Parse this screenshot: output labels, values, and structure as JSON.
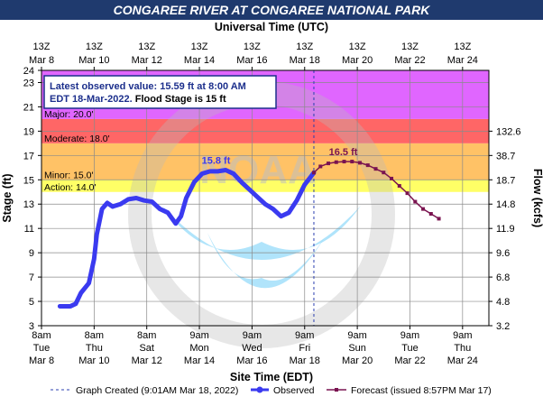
{
  "chart_data": {
    "type": "line",
    "title": "CONGAREE RIVER AT CONGAREE NATIONAL PARK",
    "top_axis_title": "Universal Time (UTC)",
    "bottom_axis_title": "Site Time (EDT)",
    "ylabel": "Stage (ft)",
    "y2label": "Flow (kcfs)",
    "ylim": [
      3,
      24
    ],
    "y_ticks": [
      3,
      5,
      7,
      9,
      11,
      13,
      15,
      17,
      19,
      21,
      23,
      24
    ],
    "y2_ticks": [
      {
        "stage": 5,
        "label": "4.8"
      },
      {
        "stage": 7,
        "label": "6.8"
      },
      {
        "stage": 9,
        "label": "9.6"
      },
      {
        "stage": 11,
        "label": "11.9"
      },
      {
        "stage": 13,
        "label": "14.8"
      },
      {
        "stage": 15,
        "label": "18.7"
      },
      {
        "stage": 17,
        "label": "38.7"
      },
      {
        "stage": 19,
        "label": "132.6"
      },
      {
        "stage": 3,
        "label": "3.2"
      }
    ],
    "xlim_days": [
      8.0,
      25.0
    ],
    "top_ticks": [
      {
        "day": 8.0,
        "l1": "13Z",
        "l2": "Mar  8"
      },
      {
        "day": 10.0,
        "l1": "13Z",
        "l2": "Mar 10"
      },
      {
        "day": 12.0,
        "l1": "13Z",
        "l2": "Mar 12"
      },
      {
        "day": 14.0,
        "l1": "13Z",
        "l2": "Mar 14"
      },
      {
        "day": 16.0,
        "l1": "13Z",
        "l2": "Mar 16"
      },
      {
        "day": 18.0,
        "l1": "13Z",
        "l2": "Mar 18"
      },
      {
        "day": 20.0,
        "l1": "13Z",
        "l2": "Mar 20"
      },
      {
        "day": 22.0,
        "l1": "13Z",
        "l2": "Mar 22"
      },
      {
        "day": 24.0,
        "l1": "13Z",
        "l2": "Mar 24"
      }
    ],
    "bottom_ticks": [
      {
        "day": 8.0,
        "l1": "8am",
        "l2": "Tue",
        "l3": "Mar 8"
      },
      {
        "day": 10.0,
        "l1": "8am",
        "l2": "Thu",
        "l3": "Mar 10"
      },
      {
        "day": 12.0,
        "l1": "8am",
        "l2": "Sat",
        "l3": "Mar 12"
      },
      {
        "day": 14.0,
        "l1": "9am",
        "l2": "Mon",
        "l3": "Mar 14"
      },
      {
        "day": 16.0,
        "l1": "9am",
        "l2": "Wed",
        "l3": "Mar 16"
      },
      {
        "day": 18.0,
        "l1": "9am",
        "l2": "Fri",
        "l3": "Mar 18"
      },
      {
        "day": 20.0,
        "l1": "9am",
        "l2": "Sun",
        "l3": "Mar 20"
      },
      {
        "day": 22.0,
        "l1": "9am",
        "l2": "Tue",
        "l3": "Mar 22"
      },
      {
        "day": 24.0,
        "l1": "9am",
        "l2": "Thu",
        "l3": "Mar 24"
      }
    ],
    "flood_categories": [
      {
        "name": "Action",
        "label": "Action: 14.0'",
        "from": 14.0,
        "to": 15.0,
        "color": "#ffff66"
      },
      {
        "name": "Minor",
        "label": "Minor: 15.0'",
        "from": 15.0,
        "to": 18.0,
        "color": "#ffc266"
      },
      {
        "name": "Moderate",
        "label": "Moderate: 18.0'",
        "from": 18.0,
        "to": 20.0,
        "color": "#ff6666"
      },
      {
        "name": "Major",
        "label": "Major: 20.0'",
        "from": 20.0,
        "to": 24.0,
        "color": "#e066ff"
      }
    ],
    "series": [
      {
        "name": "Observed",
        "color": "#3a3af0",
        "points": [
          [
            8.7,
            4.6
          ],
          [
            9.1,
            4.6
          ],
          [
            9.3,
            4.8
          ],
          [
            9.5,
            5.7
          ],
          [
            9.8,
            6.5
          ],
          [
            9.9,
            7.5
          ],
          [
            10.0,
            8.5
          ],
          [
            10.1,
            10.5
          ],
          [
            10.3,
            12.6
          ],
          [
            10.5,
            13.1
          ],
          [
            10.7,
            12.8
          ],
          [
            11.0,
            13.0
          ],
          [
            11.3,
            13.4
          ],
          [
            11.6,
            13.5
          ],
          [
            11.9,
            13.3
          ],
          [
            12.2,
            13.2
          ],
          [
            12.5,
            12.6
          ],
          [
            12.8,
            12.3
          ],
          [
            13.1,
            11.4
          ],
          [
            13.3,
            12.0
          ],
          [
            13.5,
            13.5
          ],
          [
            13.8,
            14.8
          ],
          [
            14.1,
            15.5
          ],
          [
            14.4,
            15.7
          ],
          [
            14.7,
            15.7
          ],
          [
            15.0,
            15.8
          ],
          [
            15.3,
            15.5
          ],
          [
            15.6,
            14.8
          ],
          [
            15.9,
            14.2
          ],
          [
            16.2,
            13.6
          ],
          [
            16.5,
            13.0
          ],
          [
            16.8,
            12.6
          ],
          [
            17.1,
            12.0
          ],
          [
            17.4,
            12.3
          ],
          [
            17.7,
            13.3
          ],
          [
            18.0,
            14.6
          ],
          [
            18.25,
            15.3
          ],
          [
            18.35,
            15.59
          ]
        ]
      },
      {
        "name": "Forecast (issued 8:57PM Mar 17)",
        "color": "#7a1450",
        "points": [
          [
            18.35,
            15.59
          ],
          [
            18.6,
            16.1
          ],
          [
            18.9,
            16.35
          ],
          [
            19.2,
            16.45
          ],
          [
            19.5,
            16.5
          ],
          [
            19.8,
            16.5
          ],
          [
            20.1,
            16.4
          ],
          [
            20.4,
            16.2
          ],
          [
            20.7,
            15.9
          ],
          [
            21.0,
            15.6
          ],
          [
            21.3,
            15.1
          ],
          [
            21.6,
            14.5
          ],
          [
            21.9,
            13.9
          ],
          [
            22.2,
            13.2
          ],
          [
            22.5,
            12.6
          ],
          [
            22.8,
            12.2
          ],
          [
            23.1,
            11.8
          ]
        ]
      }
    ],
    "annotations": {
      "obs_peak": {
        "text": "15.8 ft",
        "day": 14.7,
        "stage": 15.8
      },
      "fcst_peak": {
        "text": "16.5 ft",
        "day": 19.5,
        "stage": 16.5
      }
    },
    "current_time_day": 18.35,
    "info_box": {
      "line1": "Latest observed value: 15.59 ft at 8:00 AM",
      "line2_prefix": "EDT 18-Mar-2022.",
      "line2_suffix": " Flood Stage is 15 ft"
    },
    "watermark": "NOAA",
    "legend": {
      "created": "Graph Created (9:01AM Mar 18, 2022)",
      "observed": "Observed",
      "forecast": "Forecast (issued 8:57PM Mar 17)"
    },
    "colors": {
      "title_bg": "#1f3a6e",
      "grid": "#8a8a8a",
      "observed": "#3a3af0",
      "forecast": "#7a1450",
      "text_blue": "#1c2f8c"
    }
  }
}
